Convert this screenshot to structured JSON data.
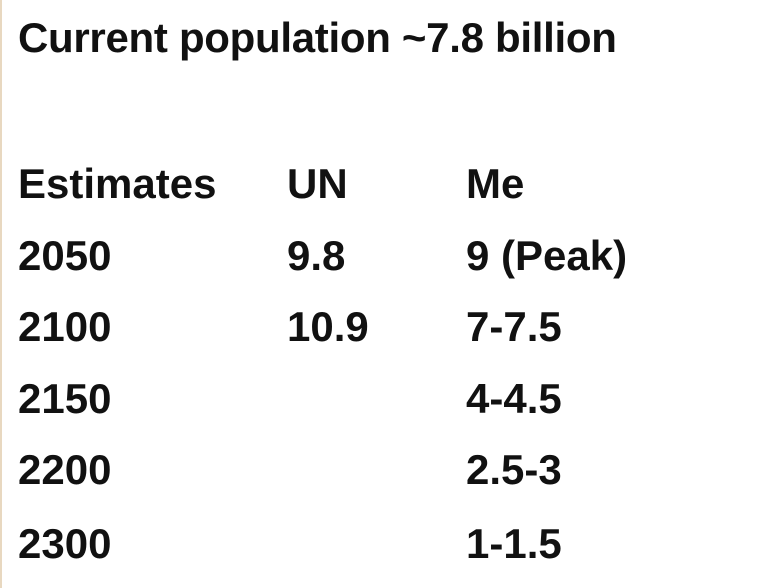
{
  "title": "Current population ~7.8 billion",
  "table": {
    "headers": [
      "Estimates",
      "UN",
      "Me"
    ],
    "rows": [
      [
        "2050",
        "9.8",
        "9 (Peak)"
      ],
      [
        "2100",
        "10.9",
        "7-7.5"
      ],
      [
        "2150",
        "",
        "4-4.5"
      ],
      [
        "2200",
        "",
        "2.5-3"
      ],
      [
        "2300",
        "",
        "1-1.5"
      ]
    ]
  }
}
